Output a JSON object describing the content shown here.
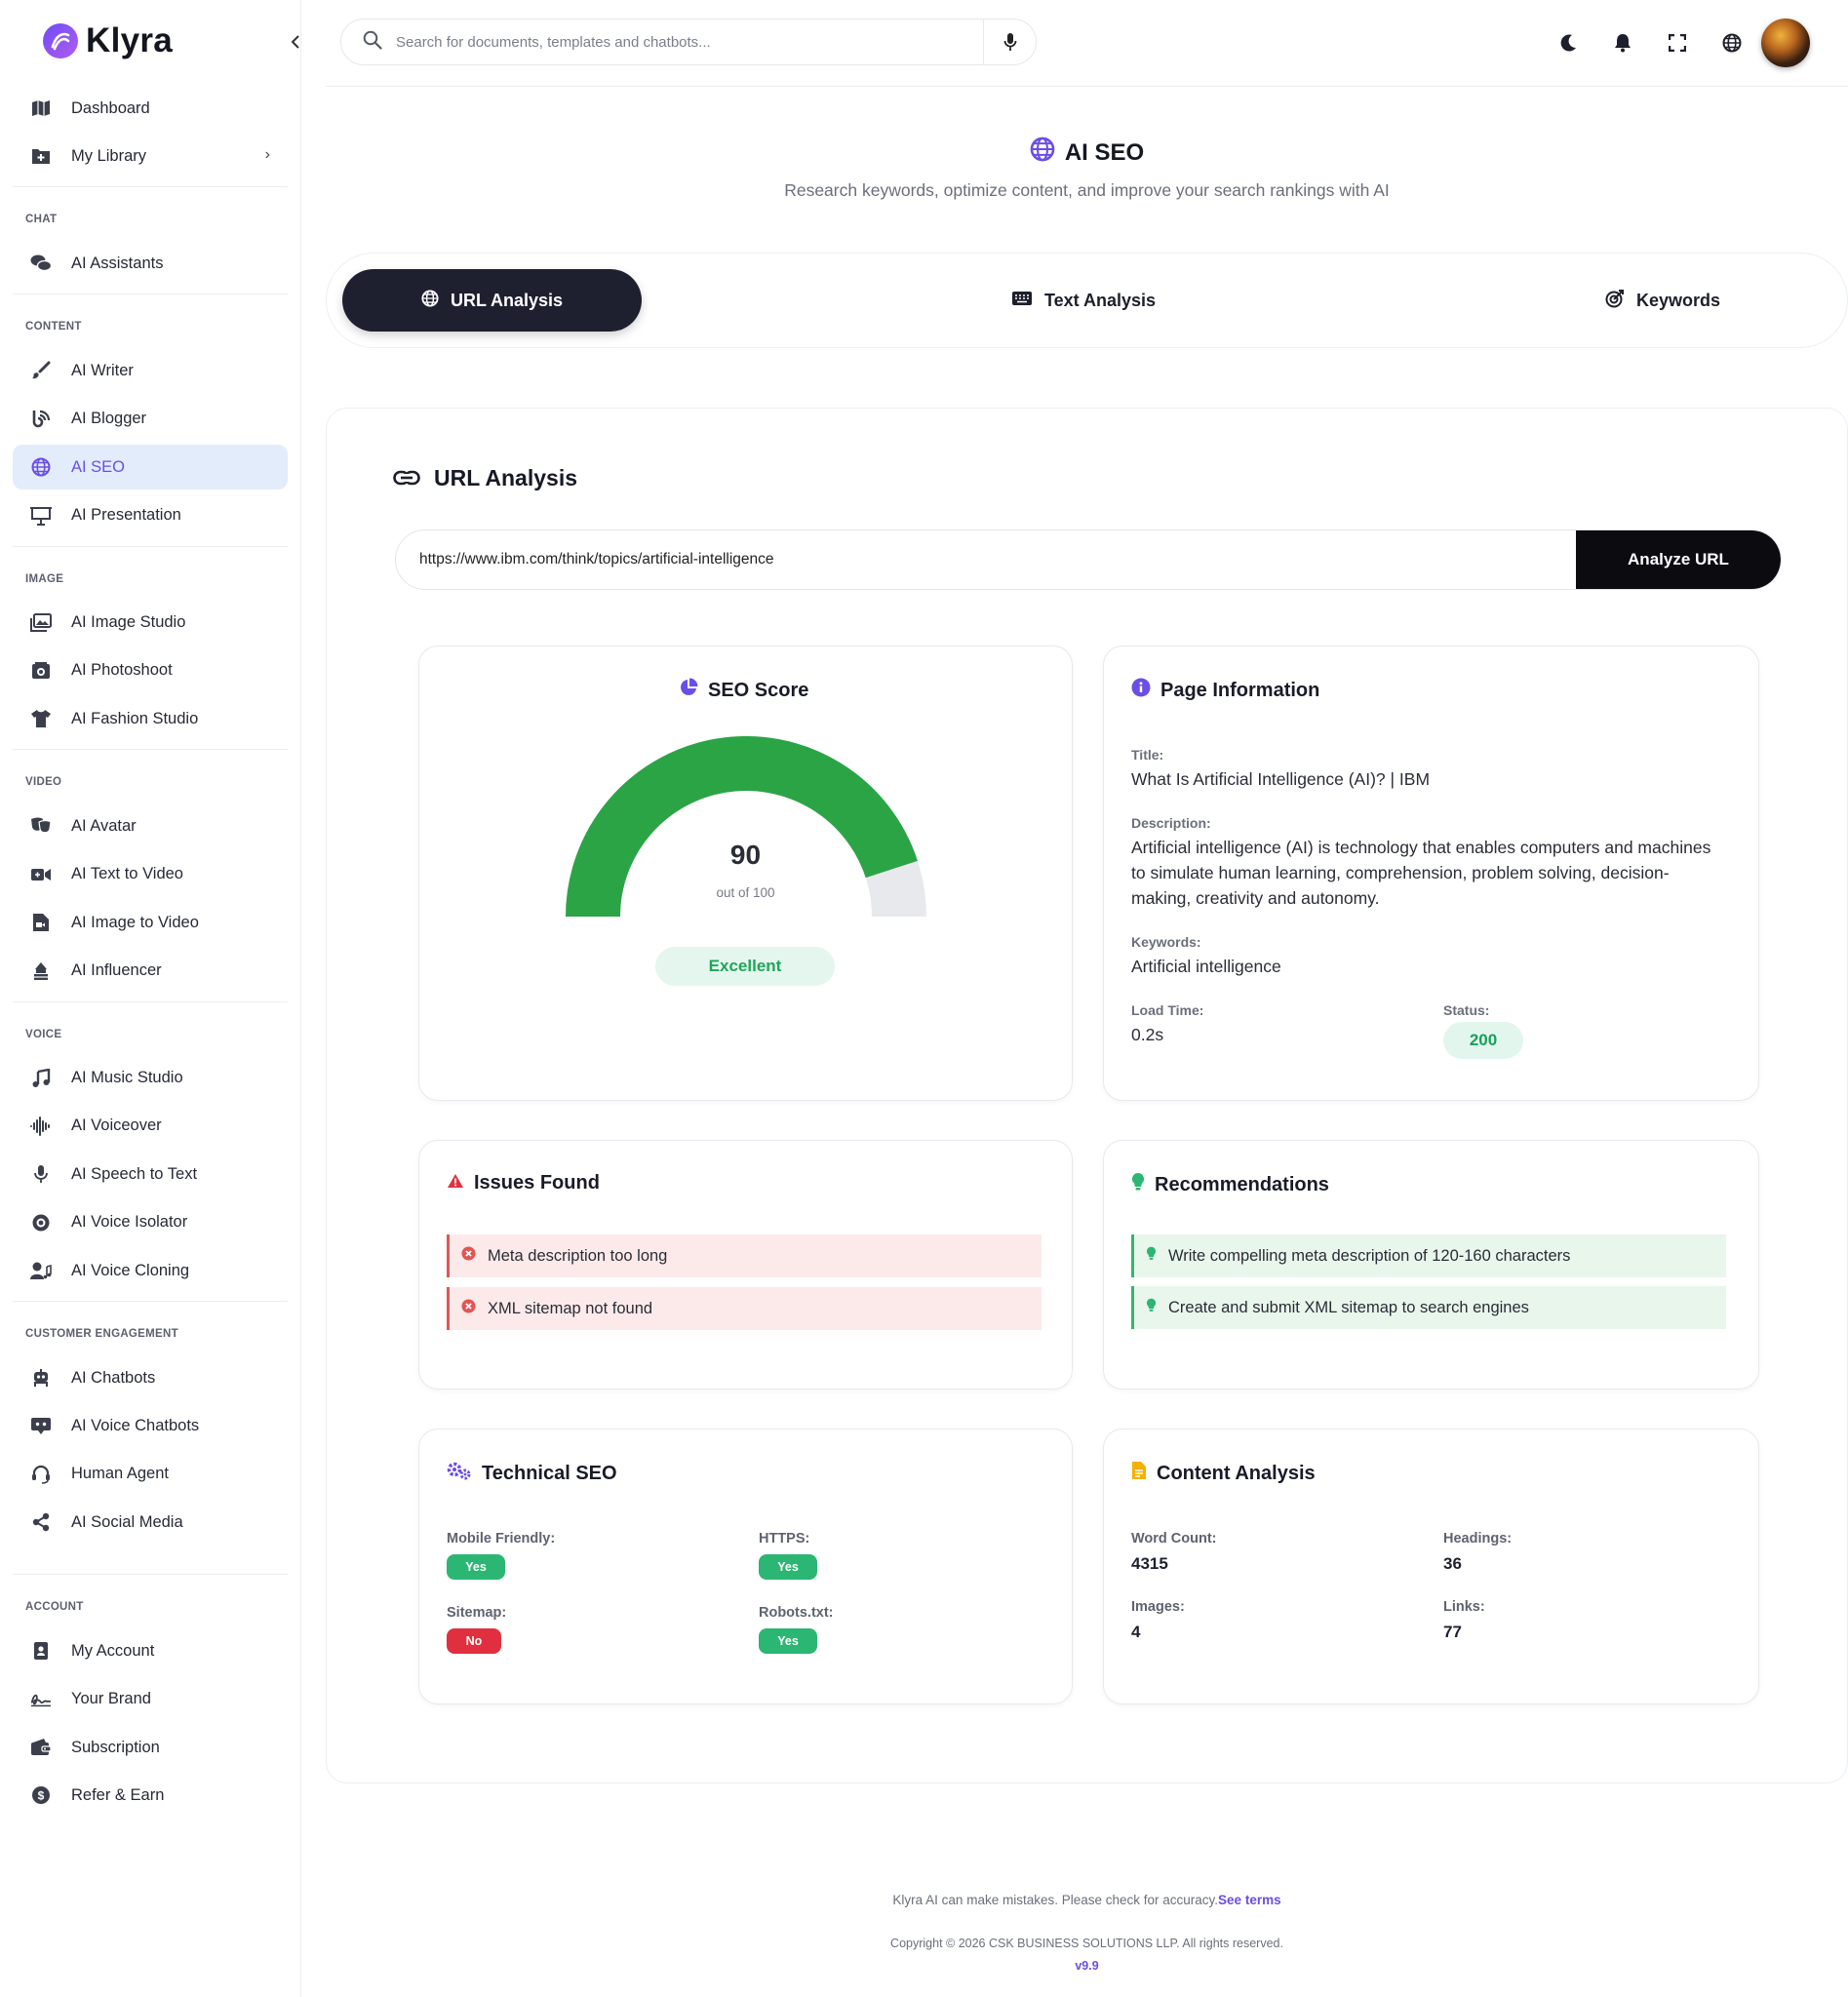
{
  "brand": {
    "name": "Klyra"
  },
  "sidebar": {
    "dashboard": "Dashboard",
    "my_library": "My Library",
    "sections": {
      "chat": "CHAT",
      "content": "CONTENT",
      "image": "IMAGE",
      "video": "VIDEO",
      "voice": "VOICE",
      "customer": "CUSTOMER ENGAGEMENT",
      "account": "ACCOUNT"
    },
    "items": {
      "ai_assistants": "AI Assistants",
      "ai_writer": "AI Writer",
      "ai_blogger": "AI Blogger",
      "ai_seo": "AI SEO",
      "ai_presentation": "AI Presentation",
      "ai_image_studio": "AI Image Studio",
      "ai_photoshoot": "AI Photoshoot",
      "ai_fashion_studio": "AI Fashion Studio",
      "ai_avatar": "AI Avatar",
      "ai_text_to_video": "AI Text to Video",
      "ai_image_to_video": "AI Image to Video",
      "ai_influencer": "AI Influencer",
      "ai_music_studio": "AI Music Studio",
      "ai_voiceover": "AI Voiceover",
      "ai_speech_to_text": "AI Speech to Text",
      "ai_voice_isolator": "AI Voice Isolator",
      "ai_voice_cloning": "AI Voice Cloning",
      "ai_chatbots": "AI Chatbots",
      "ai_voice_chatbots": "AI Voice Chatbots",
      "human_agent": "Human Agent",
      "ai_social_media": "AI Social Media",
      "my_account": "My Account",
      "your_brand": "Your Brand",
      "subscription": "Subscription",
      "refer_earn": "Refer & Earn"
    }
  },
  "header": {
    "search_placeholder": "Search for documents, templates and chatbots..."
  },
  "page": {
    "title": "AI SEO",
    "subtitle": "Research keywords, optimize content, and improve your search rankings with AI"
  },
  "tabs": {
    "url": "URL Analysis",
    "text": "Text Analysis",
    "keywords": "Keywords"
  },
  "analysis": {
    "title": "URL Analysis",
    "url_value": "https://www.ibm.com/think/topics/artificial-intelligence",
    "analyze_label": "Analyze URL"
  },
  "seo_score": {
    "title": "SEO Score",
    "score": 90,
    "max": 100,
    "out_of": "out of 100",
    "rating": "Excellent",
    "color_fill": "#2ba446",
    "color_track": "#e8e9ec"
  },
  "page_info": {
    "title": "Page Information",
    "title_label": "Title:",
    "title_value": "What Is Artificial Intelligence (AI)? | IBM",
    "desc_label": "Description:",
    "desc_value": "Artificial intelligence (AI) is technology that enables computers and machines to simulate human learning, comprehension, problem solving, decision-making, creativity and autonomy.",
    "keywords_label": "Keywords:",
    "keywords_value": "Artificial intelligence",
    "load_label": "Load Time:",
    "load_value": "0.2s",
    "status_label": "Status:",
    "status_value": "200"
  },
  "issues": {
    "title": "Issues Found",
    "items": [
      "Meta description too long",
      "XML sitemap not found"
    ]
  },
  "recommendations": {
    "title": "Recommendations",
    "items": [
      "Write compelling meta description of 120-160 characters",
      "Create and submit XML sitemap to search engines"
    ]
  },
  "technical": {
    "title": "Technical SEO",
    "mobile_label": "Mobile Friendly:",
    "mobile_value": "Yes",
    "https_label": "HTTPS:",
    "https_value": "Yes",
    "sitemap_label": "Sitemap:",
    "sitemap_value": "No",
    "robots_label": "Robots.txt:",
    "robots_value": "Yes"
  },
  "content": {
    "title": "Content Analysis",
    "word_label": "Word Count:",
    "word_value": "4315",
    "headings_label": "Headings:",
    "headings_value": "36",
    "images_label": "Images:",
    "images_value": "4",
    "links_label": "Links:",
    "links_value": "77"
  },
  "footer": {
    "disclaimer": "Klyra AI can make mistakes. Please check for accuracy.",
    "terms": "See terms",
    "copyright": "Copyright © 2026 CSK BUSINESS SOLUTIONS LLP. All rights reserved.",
    "version": "v9.9"
  }
}
